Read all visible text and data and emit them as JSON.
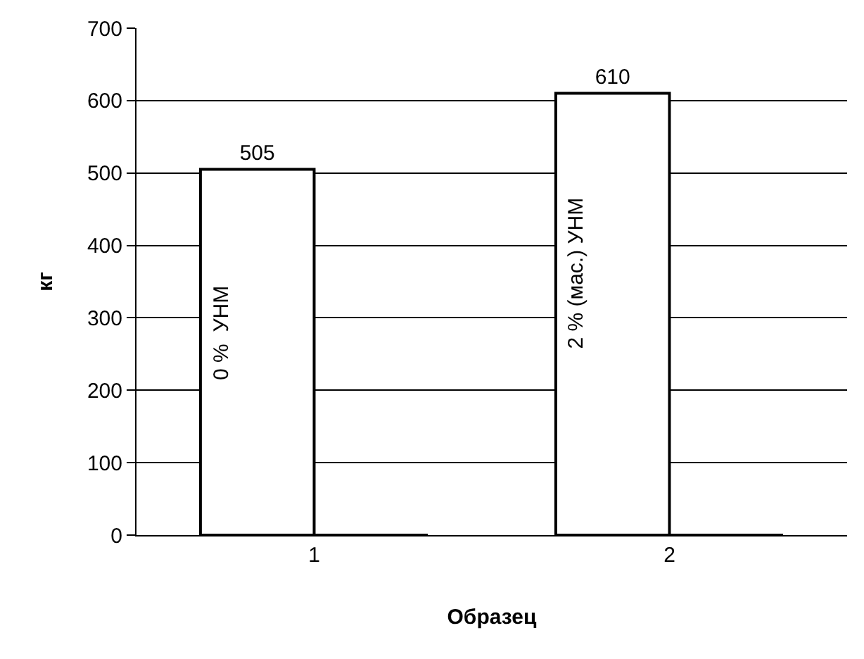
{
  "chart_data": {
    "type": "bar",
    "xlabel": "Образец",
    "ylabel": "кг",
    "categories": [
      "1",
      "2"
    ],
    "series": [
      {
        "color": "#ffffff",
        "values": [
          505,
          610
        ],
        "value_labels": [
          "505",
          "610"
        ]
      },
      {
        "color": "#000000",
        "values": [
          0,
          0
        ]
      }
    ],
    "ylim": [
      0,
      700
    ],
    "yticks": [
      0,
      100,
      200,
      300,
      400,
      500,
      600,
      700
    ],
    "grid": "y",
    "annotations": [
      "0 %  УНМ",
      "2 % (мас.) УНМ"
    ]
  }
}
